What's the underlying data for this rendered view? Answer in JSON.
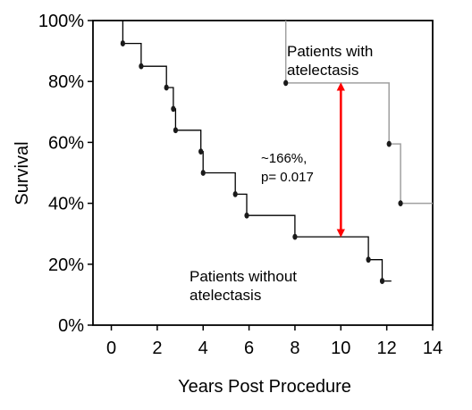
{
  "chart_data": {
    "type": "line",
    "title": "",
    "xlabel": "Years Post Procedure",
    "ylabel": "Survival",
    "xlim": [
      -0.8,
      14
    ],
    "ylim": [
      0,
      100
    ],
    "x_ticks": [
      0,
      2,
      4,
      6,
      8,
      10,
      12,
      14
    ],
    "x_tick_labels": [
      "0",
      "2",
      "4",
      "6",
      "8",
      "10",
      "12",
      "14"
    ],
    "y_ticks": [
      0,
      20,
      40,
      60,
      80,
      100
    ],
    "y_tick_labels": [
      "0%",
      "20%",
      "40%",
      "60%",
      "80%",
      "100%"
    ],
    "series": [
      {
        "name": "Patients with atelectasis",
        "label_lines": [
          "Patients with",
          "atelectasis"
        ],
        "color": "#a0a0a0",
        "steps": [
          [
            7.6,
            100
          ],
          [
            7.6,
            79.5
          ],
          [
            12.1,
            79.5
          ],
          [
            12.1,
            59.5
          ],
          [
            12.6,
            59.5
          ],
          [
            12.6,
            40
          ],
          [
            14,
            40
          ]
        ],
        "events": [
          [
            7.6,
            79.5
          ],
          [
            12.1,
            59.5
          ],
          [
            12.6,
            40
          ]
        ]
      },
      {
        "name": "Patients without atelectasis",
        "label_lines": [
          "Patients without",
          "atelectasis"
        ],
        "color": "#000000",
        "steps": [
          [
            0.5,
            100
          ],
          [
            0.5,
            92.5
          ],
          [
            1.3,
            92.5
          ],
          [
            1.3,
            85
          ],
          [
            2.4,
            85
          ],
          [
            2.4,
            78
          ],
          [
            2.7,
            78
          ],
          [
            2.7,
            71
          ],
          [
            2.8,
            71
          ],
          [
            2.8,
            64
          ],
          [
            3.9,
            64
          ],
          [
            3.9,
            57
          ],
          [
            4,
            57
          ],
          [
            4,
            50
          ],
          [
            5.4,
            50
          ],
          [
            5.4,
            43
          ],
          [
            5.9,
            43
          ],
          [
            5.9,
            36
          ],
          [
            8,
            36
          ],
          [
            8,
            29
          ],
          [
            11.2,
            29
          ],
          [
            11.2,
            21.5
          ],
          [
            11.8,
            21.5
          ],
          [
            11.8,
            14.5
          ],
          [
            12.2,
            14.5
          ]
        ],
        "events": [
          [
            0.5,
            92.5
          ],
          [
            1.3,
            85
          ],
          [
            2.4,
            78
          ],
          [
            2.7,
            71
          ],
          [
            2.8,
            64
          ],
          [
            3.9,
            57
          ],
          [
            4,
            50
          ],
          [
            5.4,
            43
          ],
          [
            5.9,
            36
          ],
          [
            8,
            29
          ],
          [
            11.2,
            21.5
          ],
          [
            11.8,
            14.5
          ]
        ]
      }
    ],
    "annotation": {
      "lines": [
        "~166%,",
        "p= 0.017"
      ],
      "arrow": {
        "x": 10,
        "y_from": 29,
        "y_to": 79.5,
        "color": "#ff0000"
      }
    },
    "grid": false,
    "legend": "none"
  }
}
